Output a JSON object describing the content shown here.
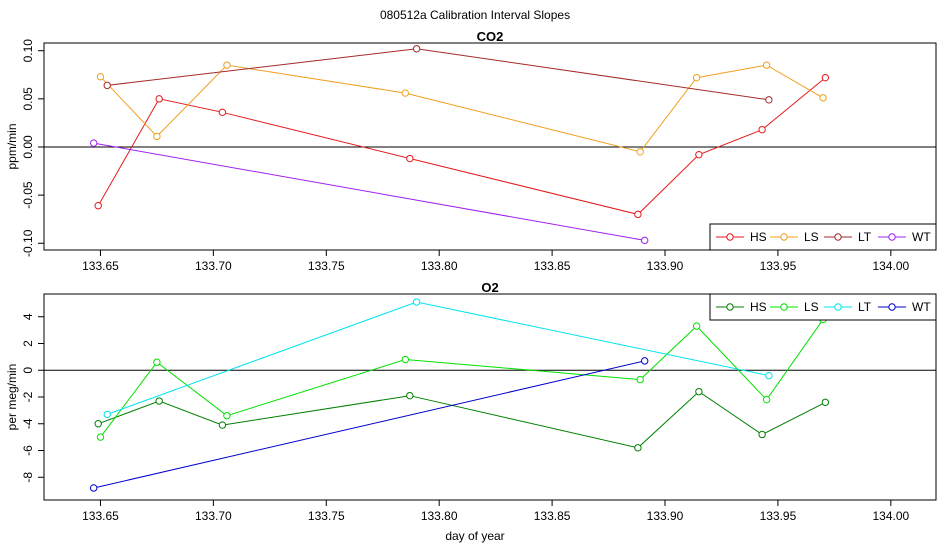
{
  "figure": {
    "title": "080512a   Calibration Interval Slopes",
    "xlabel": "day of year"
  },
  "colors": {
    "HS_co2": "#e41a1c",
    "LS_co2": "#f0a020",
    "LT_co2": "#a52a2a",
    "WT_co2": "#a020f0",
    "HS_o2": "#008000",
    "LS_o2": "#00e000",
    "LT_o2": "#00e5ee",
    "WT_o2": "#0000cd"
  },
  "chart_data": [
    {
      "type": "line",
      "title": "CO2",
      "xlabel": "",
      "ylabel": "ppm/min",
      "xlim": [
        133.625,
        134.02
      ],
      "ylim": [
        -0.107,
        0.108
      ],
      "xticks": [
        133.65,
        133.7,
        133.75,
        133.8,
        133.85,
        133.9,
        133.95,
        134.0
      ],
      "xtick_labels": [
        "133.65",
        "133.70",
        "133.75",
        "133.80",
        "133.85",
        "133.90",
        "133.95",
        "134.00"
      ],
      "yticks": [
        -0.1,
        -0.05,
        0.0,
        0.05,
        0.1
      ],
      "ytick_labels": [
        "-0.10",
        "-0.05",
        "0.00",
        "0.05",
        "0.10"
      ],
      "zero_line": true,
      "legend": {
        "position": "bottom-right",
        "entries": [
          "HS",
          "LS",
          "LT",
          "WT"
        ]
      },
      "series": [
        {
          "name": "HS",
          "color": "#e41a1c",
          "x": [
            133.649,
            133.676,
            133.704,
            133.787,
            133.888,
            133.915,
            133.943,
            133.971
          ],
          "y": [
            -0.061,
            0.05,
            0.036,
            -0.012,
            -0.07,
            -0.008,
            0.018,
            0.072
          ]
        },
        {
          "name": "LS",
          "color": "#f0a020",
          "x": [
            133.65,
            133.675,
            133.706,
            133.785,
            133.889,
            133.914,
            133.945,
            133.97
          ],
          "y": [
            0.073,
            0.011,
            0.085,
            0.056,
            -0.005,
            0.072,
            0.085,
            0.051
          ]
        },
        {
          "name": "LT",
          "color": "#a52a2a",
          "x": [
            133.653,
            133.79,
            133.946
          ],
          "y": [
            0.064,
            0.102,
            0.049
          ]
        },
        {
          "name": "WT",
          "color": "#a020f0",
          "x": [
            133.647,
            133.891
          ],
          "y": [
            0.004,
            -0.097
          ]
        }
      ]
    },
    {
      "type": "line",
      "title": "O2",
      "xlabel": "day of year",
      "ylabel": "per meg/min",
      "xlim": [
        133.625,
        134.02
      ],
      "ylim": [
        -9.7,
        5.7
      ],
      "xticks": [
        133.65,
        133.7,
        133.75,
        133.8,
        133.85,
        133.9,
        133.95,
        134.0
      ],
      "xtick_labels": [
        "133.65",
        "133.70",
        "133.75",
        "133.80",
        "133.85",
        "133.90",
        "133.95",
        "134.00"
      ],
      "yticks": [
        -8,
        -6,
        -4,
        -2,
        0,
        2,
        4
      ],
      "ytick_labels": [
        "-8",
        "-6",
        "-4",
        "-2",
        "0",
        "2",
        "4"
      ],
      "zero_line": true,
      "legend": {
        "position": "top-right",
        "entries": [
          "HS",
          "LS",
          "LT",
          "WT"
        ]
      },
      "series": [
        {
          "name": "HS",
          "color": "#008000",
          "x": [
            133.649,
            133.676,
            133.704,
            133.787,
            133.888,
            133.915,
            133.943,
            133.971
          ],
          "y": [
            -4.0,
            -2.3,
            -4.1,
            -1.9,
            -5.8,
            -1.6,
            -4.8,
            -2.4
          ]
        },
        {
          "name": "LS",
          "color": "#00e000",
          "x": [
            133.65,
            133.675,
            133.706,
            133.785,
            133.889,
            133.914,
            133.945,
            133.97
          ],
          "y": [
            -5.0,
            0.6,
            -3.4,
            0.8,
            -0.7,
            3.3,
            -2.2,
            3.8
          ]
        },
        {
          "name": "LT",
          "color": "#00e5ee",
          "x": [
            133.653,
            133.79,
            133.946
          ],
          "y": [
            -3.3,
            5.1,
            -0.4
          ]
        },
        {
          "name": "WT",
          "color": "#0000cd",
          "x": [
            133.647,
            133.891
          ],
          "y": [
            -8.8,
            0.7
          ]
        }
      ]
    }
  ]
}
